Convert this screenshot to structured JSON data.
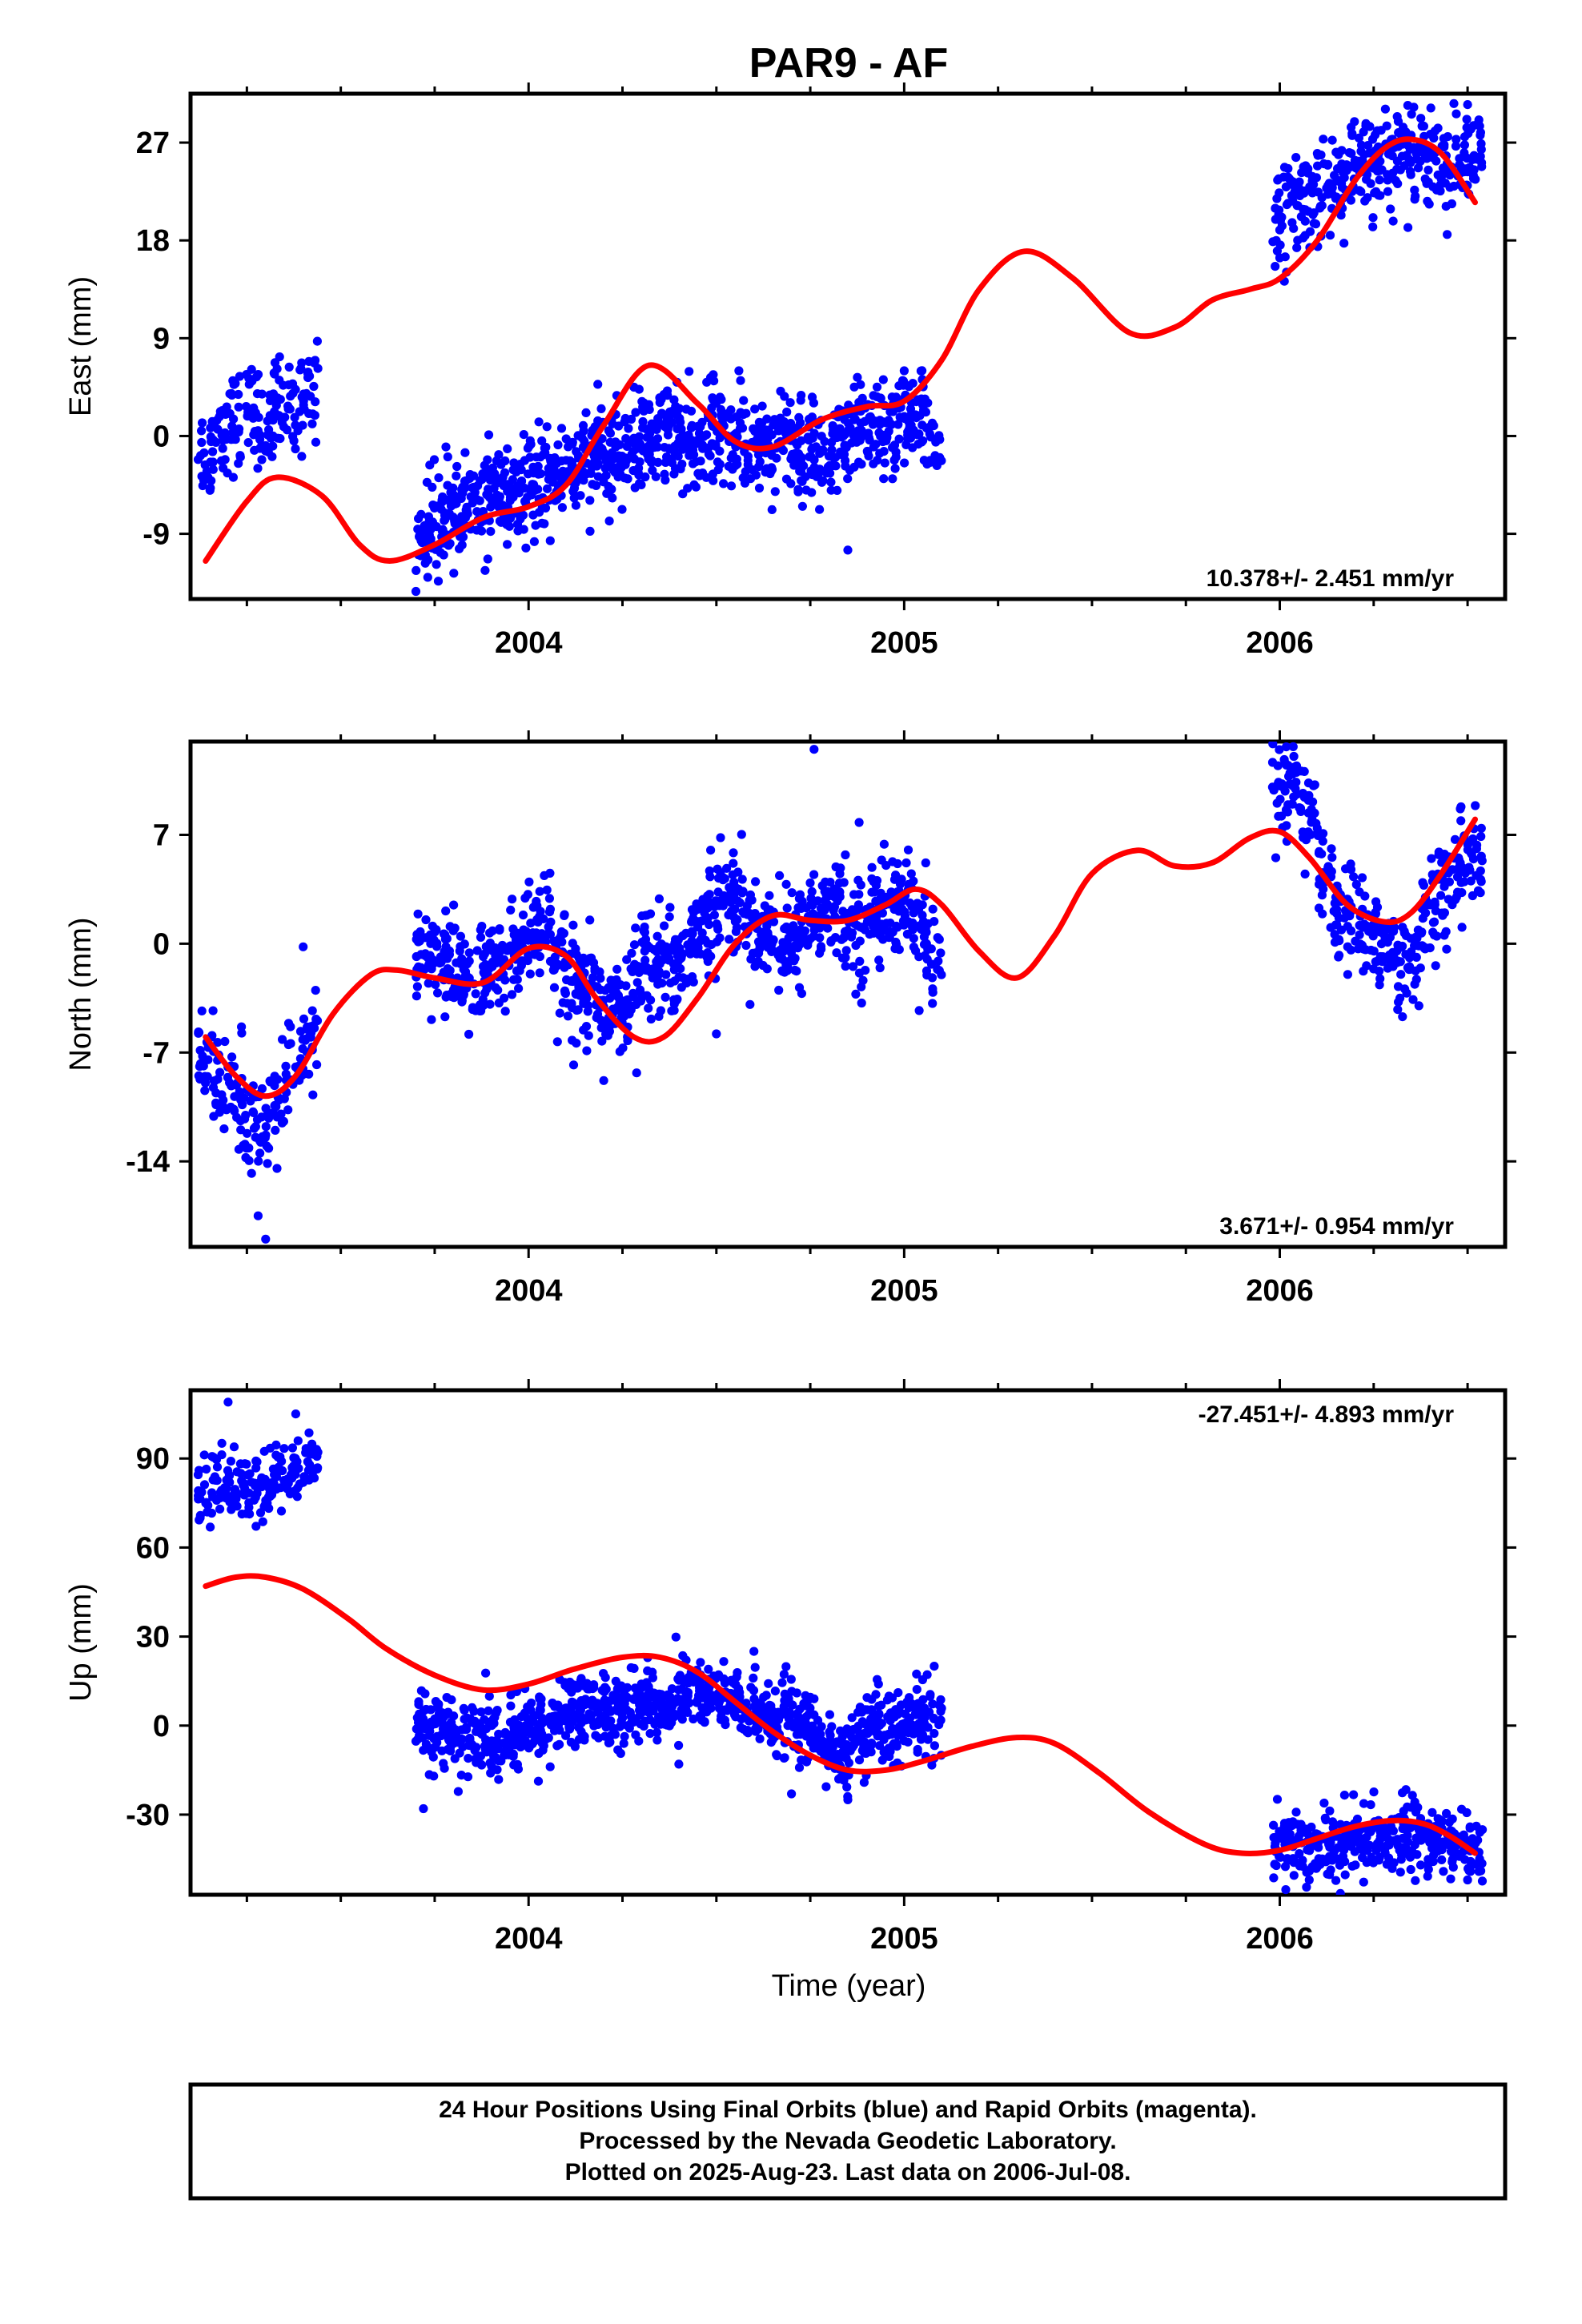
{
  "title": "PAR9 - AF",
  "colors": {
    "points": "#0000ff",
    "fit": "#ff0000",
    "frame": "#000000"
  },
  "chart_data": [
    {
      "type": "scatter",
      "id": "east",
      "ylabel": "East (mm)",
      "xlabel": "",
      "xlim": [
        2003.1,
        2006.6
      ],
      "ylim": [
        -15.0,
        31.5
      ],
      "yticks": [
        -9,
        0,
        9,
        18,
        27
      ],
      "yticklabels": [
        "-9",
        "0",
        "9",
        "18",
        "27"
      ],
      "xticks": [
        2004,
        2005,
        2006
      ],
      "xticklabels": [
        "2004",
        "2005",
        "2006"
      ],
      "rate": "10.378+/- 2.451 mm/yr",
      "rate_position": "bottom-right",
      "series": [
        {
          "x": [
            2003.14,
            2003.18,
            2003.22,
            2003.26,
            2003.3,
            2003.34,
            2003.38,
            2003.42,
            2003.72,
            2003.76,
            2003.8,
            2003.84,
            2003.88,
            2003.92,
            2003.96,
            2004.0,
            2004.04,
            2004.08,
            2004.12,
            2004.16,
            2004.2,
            2004.24,
            2004.28,
            2004.32,
            2004.36,
            2004.4,
            2004.44,
            2004.48,
            2004.52,
            2004.56,
            2004.6,
            2004.64,
            2004.68,
            2004.72,
            2004.76,
            2004.8,
            2004.84,
            2004.88,
            2004.92,
            2004.96,
            2005.0,
            2005.04,
            2005.08,
            2006.0,
            2006.04,
            2006.08,
            2006.12,
            2006.16,
            2006.2,
            2006.24,
            2006.28,
            2006.32,
            2006.36,
            2006.4,
            2006.44,
            2006.48,
            2006.52
          ],
          "y": [
            -1.5,
            0.5,
            1.5,
            2.0,
            1.0,
            2.5,
            3.0,
            4.5,
            -9.0,
            -8.0,
            -7.0,
            -6.5,
            -6.0,
            -5.5,
            -6.0,
            -5.0,
            -4.0,
            -3.5,
            -3.0,
            -2.5,
            -2.0,
            -1.5,
            -1.0,
            -0.5,
            0.5,
            0.0,
            -1.0,
            0.5,
            0.0,
            -0.5,
            -1.0,
            -0.5,
            0.0,
            -1.5,
            -1.0,
            -2.0,
            -1.0,
            0.5,
            1.0,
            0.5,
            1.5,
            1.0,
            0.0,
            20.0,
            21.5,
            22.0,
            22.5,
            23.0,
            24.0,
            25.0,
            25.5,
            26.0,
            26.5,
            26.0,
            25.0,
            25.5,
            25.0
          ],
          "n": [
            22,
            22,
            22,
            22,
            22,
            22,
            22,
            22,
            30,
            30,
            30,
            30,
            30,
            30,
            30,
            30,
            30,
            30,
            30,
            30,
            30,
            30,
            30,
            30,
            30,
            30,
            30,
            30,
            30,
            30,
            30,
            30,
            30,
            30,
            30,
            30,
            30,
            30,
            30,
            30,
            30,
            30,
            20,
            25,
            25,
            25,
            25,
            25,
            25,
            25,
            25,
            25,
            25,
            25,
            25,
            25,
            25
          ],
          "spread": 2.2,
          "outliers": [
            [
              2004.85,
              -10.5
            ],
            [
              2003.7,
              -14.3
            ],
            [
              2004.56,
              6.0
            ],
            [
              2005.0,
              6.0
            ],
            [
              2006.5,
              30.5
            ],
            [
              2006.1,
              26.0
            ]
          ]
        }
      ],
      "fit": {
        "x": [
          2003.14,
          2003.25,
          2003.33,
          2003.45,
          2003.55,
          2003.63,
          2003.75,
          2003.88,
          2004.0,
          2004.1,
          2004.2,
          2004.32,
          2004.45,
          2004.55,
          2004.65,
          2004.78,
          2004.9,
          2005.0,
          2005.1,
          2005.2,
          2005.32,
          2005.45,
          2005.6,
          2005.72,
          2005.82,
          2005.92,
          2006.0,
          2006.1,
          2006.2,
          2006.28,
          2006.35,
          2006.43,
          2006.52
        ],
        "y": [
          -11.5,
          -6.0,
          -3.8,
          -5.5,
          -10.0,
          -11.5,
          -10.0,
          -7.5,
          -6.5,
          -4.5,
          1.0,
          6.5,
          3.0,
          -0.5,
          -1.0,
          1.5,
          2.7,
          3.2,
          7.0,
          13.5,
          17.0,
          14.5,
          9.5,
          10.0,
          12.5,
          13.5,
          14.5,
          18.0,
          23.5,
          26.5,
          27.3,
          26.0,
          21.5
        ]
      }
    },
    {
      "type": "scatter",
      "id": "north",
      "ylabel": "North (mm)",
      "xlabel": "",
      "xlim": [
        2003.1,
        2006.6
      ],
      "ylim": [
        -19.5,
        13.0
      ],
      "yticks": [
        -14,
        -7,
        0,
        7
      ],
      "yticklabels": [
        "-14",
        "-7",
        "0",
        "7"
      ],
      "xticks": [
        2004,
        2005,
        2006
      ],
      "xticklabels": [
        "2004",
        "2005",
        "2006"
      ],
      "rate": "3.671+/- 0.954 mm/yr",
      "rate_position": "bottom-right",
      "series": [
        {
          "x": [
            2003.14,
            2003.18,
            2003.22,
            2003.26,
            2003.3,
            2003.34,
            2003.38,
            2003.42,
            2003.72,
            2003.76,
            2003.8,
            2003.84,
            2003.88,
            2003.92,
            2003.96,
            2004.0,
            2004.04,
            2004.08,
            2004.12,
            2004.16,
            2004.2,
            2004.24,
            2004.28,
            2004.32,
            2004.36,
            2004.4,
            2004.44,
            2004.48,
            2004.52,
            2004.56,
            2004.6,
            2004.64,
            2004.68,
            2004.72,
            2004.76,
            2004.8,
            2004.84,
            2004.88,
            2004.92,
            2004.96,
            2005.0,
            2005.04,
            2005.08,
            2006.0,
            2006.04,
            2006.08,
            2006.12,
            2006.16,
            2006.2,
            2006.24,
            2006.28,
            2006.32,
            2006.36,
            2006.4,
            2006.44,
            2006.48,
            2006.52
          ],
          "y": [
            -7.5,
            -8.5,
            -9.5,
            -11.0,
            -11.5,
            -10.5,
            -8.0,
            -6.5,
            -1.0,
            -1.0,
            -1.5,
            -2.5,
            -2.0,
            -1.5,
            -0.5,
            0.5,
            0.5,
            -1.5,
            -3.0,
            -3.5,
            -4.0,
            -4.0,
            -3.0,
            -1.0,
            -0.5,
            -1.5,
            0.5,
            2.0,
            3.0,
            2.5,
            1.5,
            1.0,
            0.0,
            0.5,
            1.5,
            2.5,
            1.5,
            1.0,
            2.0,
            2.5,
            3.0,
            1.0,
            -1.0,
            10.0,
            9.5,
            8.5,
            4.5,
            2.0,
            1.5,
            1.0,
            -0.5,
            -1.0,
            -0.5,
            1.5,
            3.5,
            5.0,
            5.5
          ],
          "n": [
            22,
            22,
            22,
            22,
            22,
            22,
            22,
            22,
            30,
            30,
            30,
            30,
            30,
            30,
            30,
            30,
            30,
            30,
            30,
            30,
            30,
            30,
            30,
            30,
            30,
            30,
            30,
            30,
            30,
            30,
            30,
            30,
            30,
            30,
            30,
            30,
            30,
            30,
            30,
            30,
            30,
            30,
            20,
            25,
            25,
            25,
            25,
            25,
            25,
            25,
            25,
            25,
            25,
            25,
            25,
            25,
            25
          ],
          "spread": 1.6,
          "outliers": [
            [
              2004.76,
              12.5
            ],
            [
              2003.3,
              -19.0
            ],
            [
              2003.28,
              -17.5
            ],
            [
              2003.4,
              -0.2
            ],
            [
              2004.12,
              -7.8
            ],
            [
              2004.2,
              -8.8
            ],
            [
              2004.5,
              -5.8
            ],
            [
              2004.88,
              7.8
            ],
            [
              2005.04,
              -4.3
            ],
            [
              2006.32,
              -3.5
            ]
          ]
        }
      ],
      "fit": {
        "x": [
          2003.14,
          2003.22,
          2003.3,
          2003.38,
          2003.48,
          2003.58,
          2003.65,
          2003.75,
          2003.88,
          2004.0,
          2004.1,
          2004.18,
          2004.28,
          2004.36,
          2004.45,
          2004.55,
          2004.65,
          2004.75,
          2004.85,
          2004.95,
          2005.03,
          2005.1,
          2005.2,
          2005.3,
          2005.4,
          2005.5,
          2005.62,
          2005.72,
          2005.82,
          2005.92,
          2006.0,
          2006.08,
          2006.18,
          2006.28,
          2006.35,
          2006.43,
          2006.52
        ],
        "y": [
          -6.0,
          -8.5,
          -9.8,
          -8.5,
          -4.5,
          -2.0,
          -1.7,
          -2.2,
          -2.5,
          -0.3,
          -0.8,
          -3.5,
          -6.0,
          -6.0,
          -3.5,
          0.0,
          1.8,
          1.5,
          1.5,
          2.5,
          3.5,
          2.5,
          -0.5,
          -2.2,
          0.5,
          4.5,
          6.0,
          5.0,
          5.2,
          6.8,
          7.2,
          5.5,
          2.5,
          1.4,
          2.0,
          4.5,
          8.0
        ]
      }
    },
    {
      "type": "scatter",
      "id": "up",
      "ylabel": "Up (mm)",
      "xlabel": "Time (year)",
      "xlim": [
        2003.1,
        2006.6
      ],
      "ylim": [
        -57.0,
        113.0
      ],
      "yticks": [
        -30,
        0,
        30,
        60,
        90
      ],
      "yticklabels": [
        "-30",
        "0",
        "30",
        "60",
        "90"
      ],
      "xticks": [
        2004,
        2005,
        2006
      ],
      "xticklabels": [
        "2004",
        "2005",
        "2006"
      ],
      "rate": "-27.451+/- 4.893 mm/yr",
      "rate_position": "top-right",
      "series": [
        {
          "x": [
            2003.14,
            2003.18,
            2003.22,
            2003.26,
            2003.3,
            2003.34,
            2003.38,
            2003.42,
            2003.72,
            2003.76,
            2003.8,
            2003.84,
            2003.88,
            2003.92,
            2003.96,
            2004.0,
            2004.04,
            2004.08,
            2004.12,
            2004.16,
            2004.2,
            2004.24,
            2004.28,
            2004.32,
            2004.36,
            2004.4,
            2004.44,
            2004.48,
            2004.52,
            2004.56,
            2004.6,
            2004.64,
            2004.68,
            2004.72,
            2004.76,
            2004.8,
            2004.84,
            2004.88,
            2004.92,
            2004.96,
            2005.0,
            2005.04,
            2005.08,
            2006.0,
            2006.04,
            2006.08,
            2006.12,
            2006.16,
            2006.2,
            2006.24,
            2006.28,
            2006.32,
            2006.36,
            2006.4,
            2006.44,
            2006.48,
            2006.52
          ],
          "y": [
            78,
            82,
            80,
            78,
            80,
            84,
            86,
            88,
            2,
            -2,
            -4,
            -3,
            -5,
            -6,
            -4,
            -2,
            0,
            3,
            5,
            6,
            5,
            6,
            7,
            8,
            5,
            10,
            12,
            10,
            8,
            6,
            5,
            4,
            2,
            0,
            -3,
            -8,
            -10,
            -5,
            0,
            -2,
            -1,
            2,
            3,
            -40,
            -40,
            -41,
            -40,
            -40,
            -39,
            -38,
            -38,
            -38,
            -37,
            -38,
            -39,
            -40,
            -42
          ],
          "n": [
            22,
            22,
            22,
            22,
            22,
            22,
            22,
            22,
            30,
            30,
            30,
            30,
            30,
            30,
            30,
            30,
            30,
            30,
            30,
            30,
            30,
            30,
            30,
            30,
            30,
            30,
            30,
            30,
            30,
            30,
            30,
            30,
            30,
            30,
            30,
            30,
            30,
            30,
            30,
            30,
            30,
            30,
            20,
            25,
            25,
            25,
            25,
            25,
            25,
            25,
            25,
            25,
            25,
            25,
            25,
            25,
            25
          ],
          "spread": 6.0,
          "outliers": [
            [
              2003.2,
              109
            ],
            [
              2003.38,
              105
            ],
            [
              2003.72,
              -28
            ],
            [
              2004.7,
              -23
            ],
            [
              2004.85,
              -25
            ],
            [
              2004.6,
              25
            ],
            [
              2004.4,
              -13
            ],
            [
              2005.08,
              20
            ],
            [
              2006.5,
              -52
            ],
            [
              2006.36,
              -27
            ]
          ]
        }
      ],
      "fit": {
        "x": [
          2003.14,
          2003.22,
          2003.3,
          2003.4,
          2003.52,
          2003.62,
          2003.75,
          2003.88,
          2004.0,
          2004.12,
          2004.25,
          2004.35,
          2004.45,
          2004.55,
          2004.65,
          2004.75,
          2004.85,
          2004.95,
          2005.05,
          2005.18,
          2005.3,
          2005.4,
          2005.52,
          2005.65,
          2005.8,
          2005.9,
          2006.0,
          2006.1,
          2006.2,
          2006.3,
          2006.38,
          2006.45,
          2006.52
        ],
        "y": [
          47,
          50,
          50,
          46,
          36,
          26,
          17,
          12,
          14,
          19,
          23,
          23,
          18,
          8,
          -2,
          -10,
          -15,
          -15,
          -12,
          -7,
          -4,
          -6,
          -16,
          -29,
          -40,
          -43,
          -42,
          -38,
          -34,
          -32,
          -33,
          -37,
          -43
        ]
      }
    }
  ],
  "footer": {
    "line1": "24 Hour Positions Using Final Orbits (blue) and Rapid Orbits (magenta).",
    "line2": "Processed by the Nevada Geodetic Laboratory.",
    "line3": "Plotted on 2025-Aug-23. Last data on 2006-Jul-08."
  }
}
